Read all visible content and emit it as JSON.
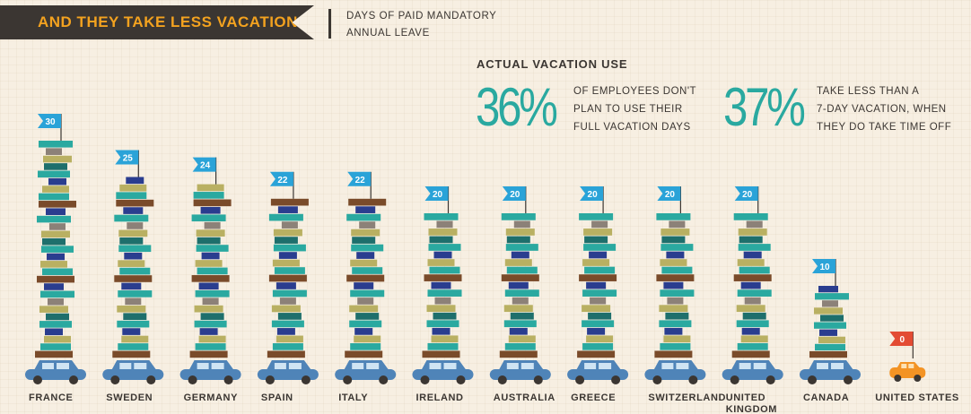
{
  "header": {
    "banner_title": "AND THEY TAKE LESS VACATION",
    "legend_line1": "DAYS OF PAID MANDATORY",
    "legend_line2": "ANNUAL LEAVE"
  },
  "actual_use": {
    "title": "ACTUAL VACATION USE",
    "stats": [
      {
        "value": "36%",
        "lines": [
          "OF EMPLOYEES DON'T",
          "PLAN TO USE THEIR",
          "FULL VACATION DAYS"
        ]
      },
      {
        "value": "37%",
        "lines": [
          "TAKE LESS THAN A",
          "7-DAY VACATION, WHEN",
          "THEY DO TAKE TIME OFF"
        ]
      }
    ]
  },
  "colors": {
    "teal": "#2aa9a0",
    "dark_teal": "#1e6f6c",
    "olive": "#b9b062",
    "navy": "#2a3d8f",
    "brown": "#7a4b2a",
    "gray": "#8c8178",
    "flag_blue": "#2aa3d8",
    "flag_red": "#e34b33",
    "car_blue": "#4f84b8",
    "car_orange": "#f39324",
    "highlight_label": "#f3a21f"
  },
  "chart_data": {
    "type": "bar",
    "ylabel": "DAYS OF PAID MANDATORY ANNUAL LEAVE",
    "categories": [
      "FRANCE",
      "SWEDEN",
      "GERMANY",
      "SPAIN",
      "ITALY",
      "IRELAND",
      "AUSTRALIA",
      "GREECE",
      "SWITZERLAND",
      "UNITED KINGDOM",
      "CANADA",
      "UNITED STATES"
    ],
    "label_lines": [
      [
        "FRANCE"
      ],
      [
        "SWEDEN"
      ],
      [
        "GERMANY"
      ],
      [
        "SPAIN"
      ],
      [
        "ITALY"
      ],
      [
        "IRELAND"
      ],
      [
        "AUSTRALIA"
      ],
      [
        "GREECE"
      ],
      [
        "SWITZERLAND"
      ],
      [
        "UNITED",
        "KINGDOM"
      ],
      [
        "CANADA"
      ],
      [
        "UNITED STATES"
      ]
    ],
    "values": [
      30,
      25,
      24,
      22,
      22,
      20,
      20,
      20,
      20,
      20,
      10,
      0
    ],
    "highlight": "UNITED STATES"
  }
}
